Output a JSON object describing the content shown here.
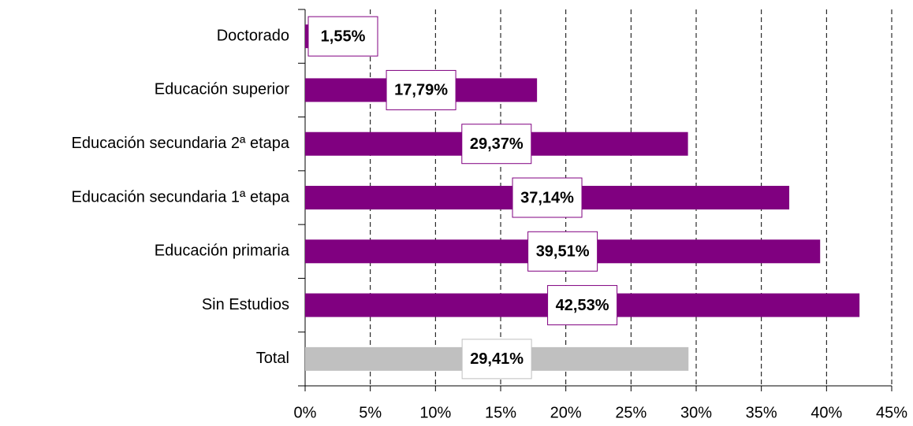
{
  "chart_data": {
    "type": "bar",
    "orientation": "horizontal",
    "categories": [
      "Doctorado",
      "Educación superior",
      "Educación secundaria 2ª etapa",
      "Educación secundaria 1ª etapa",
      "Educación primaria",
      "Sin Estudios",
      "Total"
    ],
    "values": [
      1.55,
      17.79,
      29.37,
      37.14,
      39.51,
      42.53,
      29.41
    ],
    "value_labels": [
      "1,55%",
      "17,79%",
      "29,37%",
      "37,14%",
      "39,51%",
      "42,53%",
      "29,41%"
    ],
    "colors": [
      "#800080",
      "#800080",
      "#800080",
      "#800080",
      "#800080",
      "#800080",
      "#c0c0c0"
    ],
    "xlim": [
      0,
      45
    ],
    "xticks": [
      {
        "value": 0,
        "label": "0%"
      },
      {
        "value": 5,
        "label": "5%"
      },
      {
        "value": 10,
        "label": "10%"
      },
      {
        "value": 15,
        "label": "15%"
      },
      {
        "value": 20,
        "label": "20%"
      },
      {
        "value": 25,
        "label": "25%"
      },
      {
        "value": 30,
        "label": "30%"
      },
      {
        "value": 35,
        "label": "35%"
      },
      {
        "value": 40,
        "label": "40%"
      },
      {
        "value": 45,
        "label": "45%"
      }
    ],
    "grid": true
  }
}
